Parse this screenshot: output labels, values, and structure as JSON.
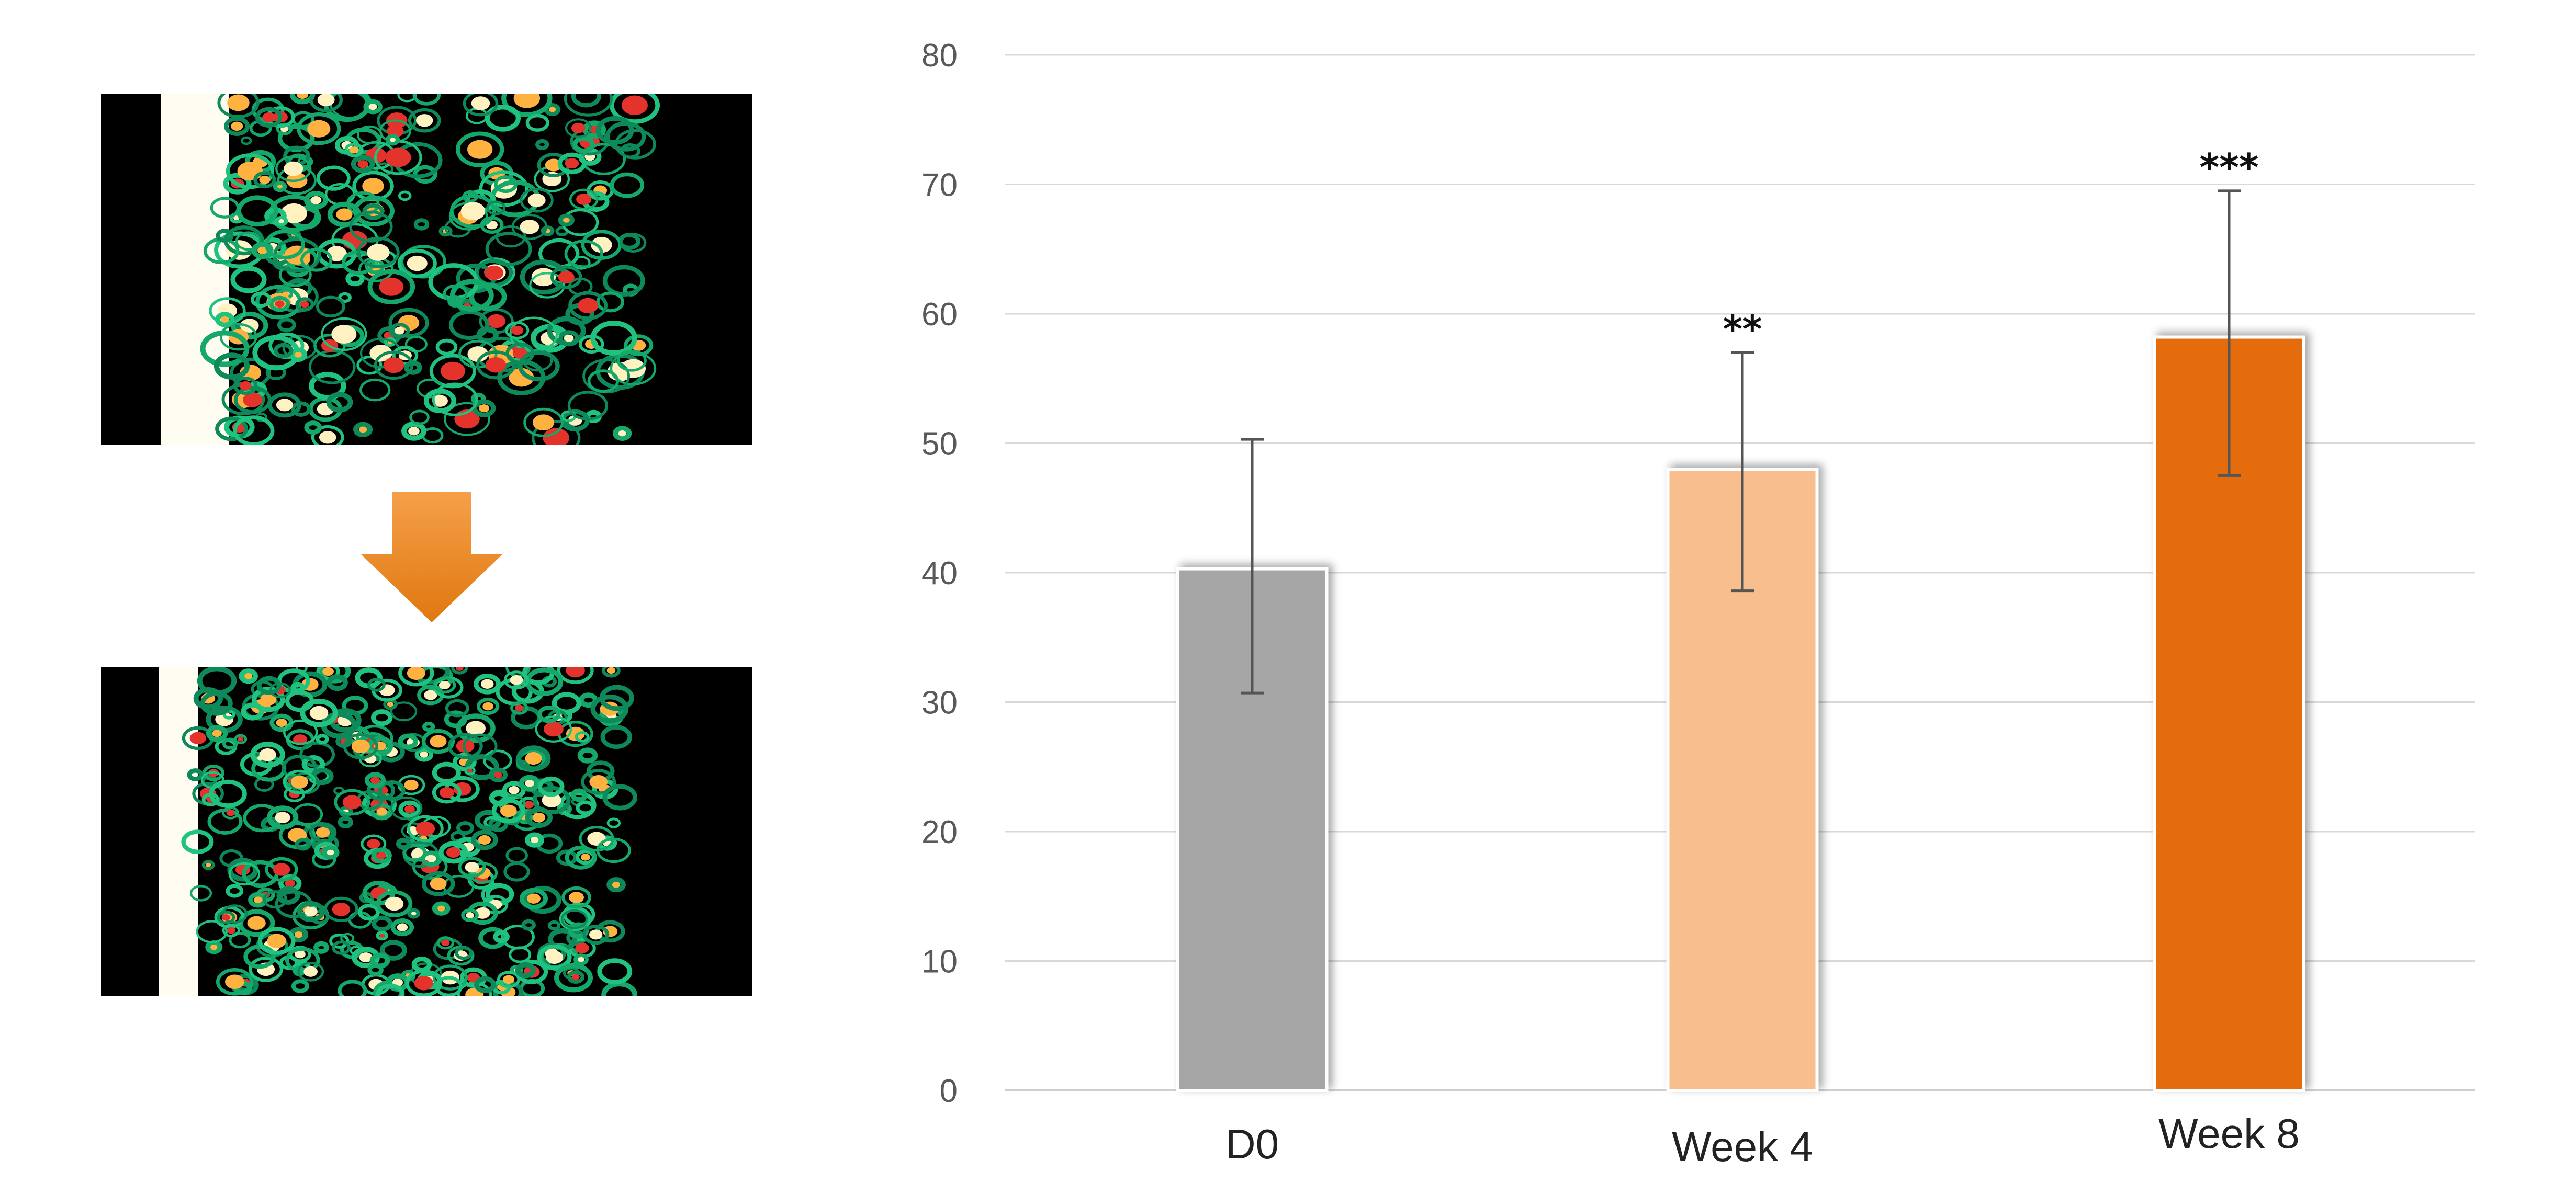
{
  "figure": {
    "images": [
      {
        "name": "before-image",
        "description_label": ""
      },
      {
        "name": "after-image",
        "description_label": ""
      }
    ],
    "arrow_color": "#F08A24"
  },
  "chart_data": {
    "type": "bar",
    "title": "",
    "xlabel": "",
    "ylabel": "",
    "ylim": [
      0,
      80
    ],
    "yticks": [
      0,
      10,
      20,
      30,
      40,
      50,
      60,
      70,
      80
    ],
    "grid": true,
    "legend": "none",
    "categories": [
      "D0",
      "Week 4",
      "Week 8"
    ],
    "values": [
      40.3,
      48.0,
      58.2
    ],
    "error_low": [
      30.7,
      38.6,
      47.5
    ],
    "error_high": [
      50.3,
      57.0,
      69.5
    ],
    "significance": [
      "",
      "**",
      "***"
    ],
    "colors": [
      "#A6A6A6",
      "#F8BE8E",
      "#E46C0A"
    ]
  }
}
